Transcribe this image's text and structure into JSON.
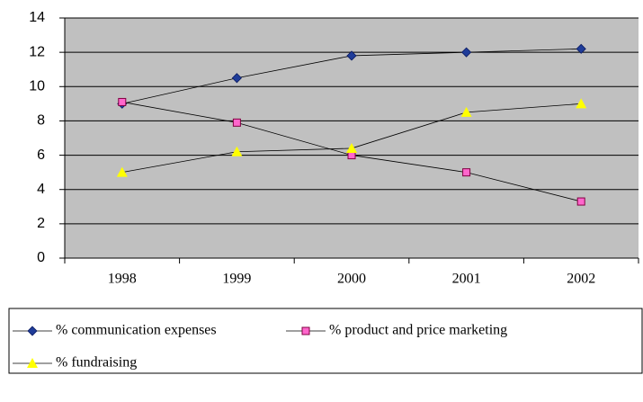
{
  "chart_data": {
    "type": "line",
    "categories": [
      "1998",
      "1999",
      "2000",
      "2001",
      "2002"
    ],
    "series": [
      {
        "name": "% communication expenses",
        "color": "#1f3c99",
        "marker": "diamond",
        "values": [
          9,
          10.5,
          11.8,
          12,
          12.2
        ]
      },
      {
        "name": "% product and price marketing",
        "color": "#ff66cc",
        "marker": "square",
        "values": [
          9.1,
          7.9,
          6,
          5,
          3.3
        ]
      },
      {
        "name": "% fundraising",
        "color": "#ffff00",
        "marker": "triangle",
        "values": [
          5,
          6.2,
          6.4,
          8.5,
          9
        ]
      }
    ],
    "ylim": [
      0,
      14
    ],
    "yticks": [
      0,
      2,
      4,
      6,
      8,
      10,
      12,
      14
    ],
    "grid": true,
    "legend": "bottom"
  }
}
